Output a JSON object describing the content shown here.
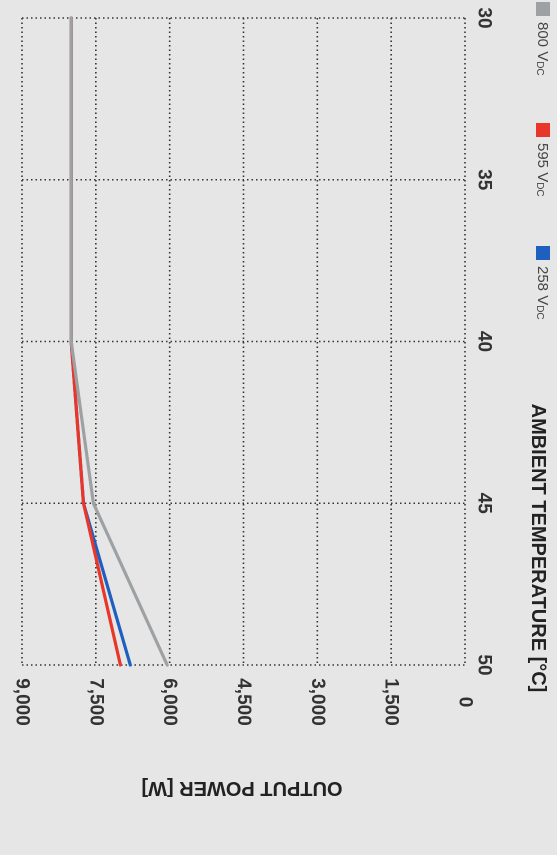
{
  "chart_data": {
    "type": "line",
    "orientation": "rotated-90-clockwise",
    "xlabel": "AMBIENT TEMPERATURE [°C]",
    "ylabel": "OUTPUT POWER [W]",
    "xlim": [
      30,
      50
    ],
    "ylim": [
      0,
      9000
    ],
    "x_ticks": [
      "30",
      "35",
      "40",
      "45",
      "50"
    ],
    "y_ticks": [
      "0",
      "1,500",
      "3,000",
      "4,500",
      "6,000",
      "7,500",
      "9,000"
    ],
    "grid": true,
    "legend_position": "bottom",
    "series": [
      {
        "name_main": "258 V",
        "name_sub": "DC",
        "color": "#1f5fbf",
        "x": [
          30,
          40,
          45,
          50
        ],
        "y": [
          8000,
          8000,
          7750,
          6800
        ]
      },
      {
        "name_main": "595 V",
        "name_sub": "DC",
        "color": "#e8372a",
        "x": [
          30,
          40,
          45,
          50
        ],
        "y": [
          8000,
          8000,
          7750,
          7000
        ]
      },
      {
        "name_main": "800 V",
        "name_sub": "DC",
        "color": "#9ea1a3",
        "x": [
          30,
          40,
          45,
          50
        ],
        "y": [
          8000,
          8000,
          7550,
          6050
        ]
      }
    ]
  }
}
